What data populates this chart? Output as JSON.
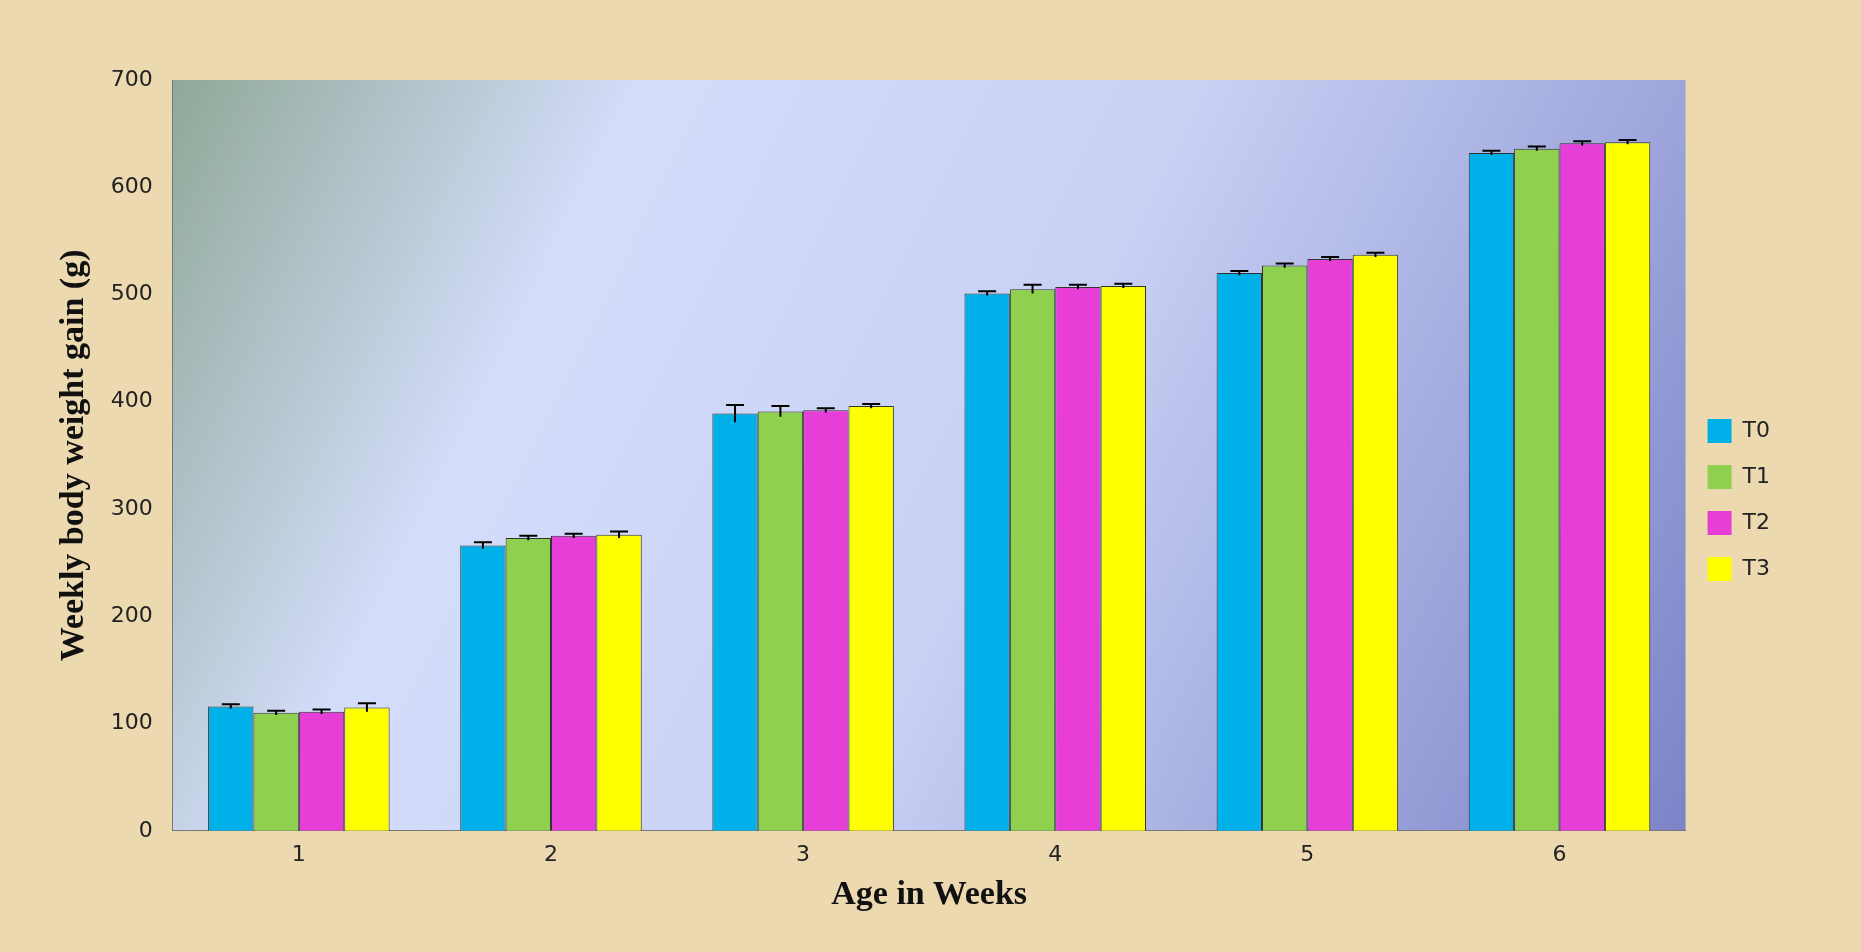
{
  "chart_data": {
    "type": "bar",
    "xlabel": "Age in Weeks",
    "ylabel": "Weekly body weight gain (g)",
    "categories": [
      "1",
      "2",
      "3",
      "4",
      "5",
      "6"
    ],
    "series": [
      {
        "name": "T0",
        "color": "#00b0e8",
        "values": [
          116,
          266,
          389,
          501,
          520,
          632
        ],
        "errors": [
          2,
          3,
          8,
          2,
          2,
          2
        ]
      },
      {
        "name": "T1",
        "color": "#8fd04f",
        "values": [
          110,
          273,
          391,
          505,
          527,
          636
        ],
        "errors": [
          2,
          2,
          5,
          4,
          2,
          2
        ]
      },
      {
        "name": "T2",
        "color": "#e83ed8",
        "values": [
          111,
          275,
          392,
          507,
          533,
          641
        ],
        "errors": [
          2,
          2,
          2,
          2,
          2,
          2
        ]
      },
      {
        "name": "T3",
        "color": "#ffff00",
        "values": [
          115,
          276,
          396,
          508,
          537,
          642
        ],
        "errors": [
          4,
          3,
          2,
          2,
          2,
          2
        ]
      }
    ],
    "ylim": [
      0,
      700
    ],
    "yticks": [
      0,
      100,
      200,
      300,
      400,
      500,
      600,
      700
    ],
    "grid": false,
    "legend": "right"
  }
}
